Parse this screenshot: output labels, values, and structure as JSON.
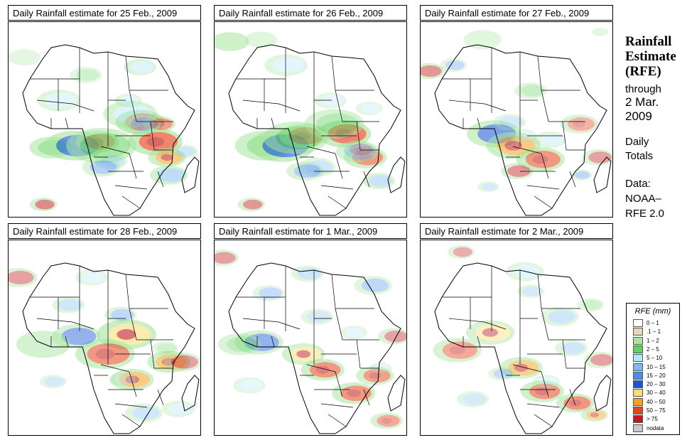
{
  "panels": [
    {
      "title": "Daily Rainfall estimate for  25 Feb., 2009",
      "rain": [
        [
          3,
          22,
          64,
          8,
          0.55
        ],
        [
          26,
          34,
          63,
          11,
          0.6
        ],
        [
          52,
          46,
          61,
          8,
          0.5
        ],
        [
          56,
          68,
          51,
          9,
          0.7
        ],
        [
          54,
          76,
          61,
          10,
          0.65
        ],
        [
          48,
          82,
          69,
          7,
          0.55
        ],
        [
          66,
          78,
          52,
          6,
          0.5
        ],
        [
          76,
          18,
          93,
          5,
          0.5
        ],
        [
          2,
          48,
          63,
          13,
          0.55
        ],
        [
          5,
          68,
          23,
          6,
          0.4
        ],
        [
          9,
          63,
          47,
          10,
          0.45
        ],
        [
          10,
          69,
          52,
          7,
          0.5
        ],
        [
          10,
          83,
          78,
          7,
          0.5
        ],
        [
          11,
          91,
          66,
          5,
          0.35
        ],
        [
          12,
          53,
          71,
          6,
          0.35
        ],
        [
          15,
          48,
          74,
          7,
          0.4
        ],
        [
          7,
          62,
          40,
          5,
          0.35
        ],
        [
          4,
          40,
          27,
          6,
          0.3
        ],
        [
          1,
          8,
          18,
          6,
          0.3
        ],
        [
          8,
          26,
          40,
          8,
          0.35
        ]
      ]
    },
    {
      "title": "Daily Rainfall estimate for  26 Feb., 2009",
      "rain": [
        [
          3,
          26,
          63,
          11,
          0.55
        ],
        [
          25,
          35,
          63,
          12,
          0.6
        ],
        [
          54,
          46,
          58,
          9,
          0.5
        ],
        [
          58,
          67,
          57,
          10,
          0.65
        ],
        [
          56,
          78,
          69,
          8,
          0.55
        ],
        [
          66,
          75,
          65,
          6,
          0.45
        ],
        [
          75,
          19,
          93,
          5,
          0.45
        ],
        [
          1,
          8,
          10,
          7,
          0.55
        ],
        [
          2,
          42,
          59,
          12,
          0.5
        ],
        [
          3,
          62,
          52,
          11,
          0.45
        ],
        [
          10,
          74,
          66,
          8,
          0.45
        ],
        [
          11,
          85,
          81,
          6,
          0.4
        ],
        [
          13,
          53,
          74,
          7,
          0.35
        ],
        [
          15,
          47,
          76,
          7,
          0.4
        ],
        [
          8,
          37,
          22,
          8,
          0.35
        ],
        [
          5,
          60,
          40,
          6,
          0.3
        ],
        [
          1,
          24,
          9,
          6,
          0.35
        ],
        [
          9,
          80,
          44,
          5,
          0.3
        ]
      ]
    },
    {
      "title": "Daily Rainfall estimate for  27 Feb., 2009",
      "rain": [
        [
          21,
          38,
          57,
          10,
          0.55
        ],
        [
          44,
          48,
          63,
          10,
          0.55
        ],
        [
          65,
          62,
          70,
          9,
          0.55
        ],
        [
          82,
          50,
          76,
          6,
          0.45
        ],
        [
          73,
          82,
          52,
          7,
          0.4
        ],
        [
          89,
          92,
          69,
          6,
          0.4
        ],
        [
          92,
          4,
          25,
          6,
          0.45
        ],
        [
          1,
          32,
          9,
          7,
          0.35
        ],
        [
          1,
          93,
          5,
          3,
          0.3
        ],
        [
          16,
          83,
          78,
          4,
          0.35
        ],
        [
          13,
          35,
          84,
          4,
          0.3
        ],
        [
          7,
          67,
          60,
          6,
          0.35
        ],
        [
          3,
          57,
          35,
          6,
          0.35
        ],
        [
          14,
          46,
          51,
          6,
          0.3
        ],
        [
          9,
          53,
          58,
          5,
          0.3
        ],
        [
          18,
          17,
          22,
          5,
          0.3
        ]
      ]
    },
    {
      "title": "Daily Rainfall estimate for  28 Feb., 2009",
      "rain": [
        [
          32,
          61,
          48,
          11,
          0.6
        ],
        [
          55,
          50,
          58,
          11,
          0.55
        ],
        [
          49,
          64,
          71,
          8,
          0.55
        ],
        [
          40,
          83,
          62,
          8,
          0.55
        ],
        [
          21,
          35,
          49,
          9,
          0.45
        ],
        [
          1,
          18,
          53,
          10,
          0.5
        ],
        [
          77,
          90,
          62,
          7,
          0.4
        ],
        [
          90,
          5,
          19,
          7,
          0.4
        ],
        [
          5,
          43,
          19,
          6,
          0.3
        ],
        [
          11,
          31,
          33,
          6,
          0.35
        ],
        [
          15,
          58,
          38,
          6,
          0.35
        ],
        [
          9,
          88,
          86,
          6,
          0.35
        ],
        [
          11,
          70,
          88,
          7,
          0.35
        ],
        [
          6,
          59,
          71,
          5,
          0.3
        ],
        [
          3,
          81,
          55,
          5,
          0.3
        ],
        [
          13,
          23,
          72,
          5,
          0.3
        ]
      ]
    },
    {
      "title": "Daily Rainfall estimate for  1 Mar., 2009",
      "rain": [
        [
          38,
          46,
          58,
          8,
          0.5
        ],
        [
          58,
          56,
          66,
          8,
          0.55
        ],
        [
          63,
          72,
          78,
          8,
          0.55
        ],
        [
          61,
          83,
          69,
          7,
          0.5
        ],
        [
          50,
          89,
          92,
          6,
          0.45
        ],
        [
          75,
          93,
          49,
          6,
          0.4
        ],
        [
          85,
          4,
          9,
          6,
          0.4
        ],
        [
          22,
          23,
          52,
          9,
          0.45
        ],
        [
          3,
          13,
          53,
          8,
          0.4
        ],
        [
          14,
          53,
          39,
          6,
          0.3
        ],
        [
          16,
          28,
          27,
          6,
          0.3
        ],
        [
          10,
          48,
          17,
          6,
          0.35
        ],
        [
          16,
          82,
          23,
          7,
          0.35
        ],
        [
          9,
          72,
          47,
          5,
          0.3
        ],
        [
          5,
          86,
          65,
          4,
          0.3
        ],
        [
          6,
          18,
          74,
          6,
          0.3
        ]
      ]
    },
    {
      "title": "Daily Rainfall estimate for  2 Mar., 2009",
      "rain": [
        [
          42,
          52,
          65,
          8,
          0.5
        ],
        [
          64,
          63,
          77,
          8,
          0.55
        ],
        [
          74,
          80,
          83,
          7,
          0.55
        ],
        [
          46,
          90,
          89,
          5,
          0.45
        ],
        [
          84,
          93,
          61,
          6,
          0.4
        ],
        [
          80,
          21,
          6,
          5,
          0.35
        ],
        [
          30,
          36,
          47,
          9,
          0.45
        ],
        [
          51,
          19,
          56,
          9,
          0.45
        ],
        [
          12,
          27,
          81,
          6,
          0.3
        ],
        [
          8,
          54,
          16,
          7,
          0.35
        ],
        [
          13,
          72,
          39,
          7,
          0.35
        ],
        [
          2,
          88,
          33,
          5,
          0.3
        ],
        [
          13,
          78,
          55,
          6,
          0.35
        ],
        [
          17,
          42,
          68,
          5,
          0.3
        ],
        [
          5,
          65,
          72,
          5,
          0.3
        ],
        [
          10,
          57,
          26,
          5,
          0.3
        ]
      ]
    }
  ],
  "sidebar": {
    "title": [
      "Rainfall",
      "Estimate",
      "(RFE)"
    ],
    "through_label": "through",
    "date_line1": "2 Mar.",
    "date_line2": "2009",
    "totals_line1": "Daily",
    "totals_line2": "Totals",
    "data_line1": "Data:",
    "data_line2": "NOAA–",
    "data_line3": "RFE 2.0"
  },
  "legend": {
    "title": "RFE (mm)",
    "items": [
      {
        "label": "0 – 1",
        "color": "#ffffff"
      },
      {
        "label": ".1 – 1",
        "color": "#e8d6b8"
      },
      {
        "label": "1 – 2",
        "color": "#a8e6a0"
      },
      {
        "label": "2 – 5",
        "color": "#5fd25f"
      },
      {
        "label": "5 – 10",
        "color": "#b4e8f6"
      },
      {
        "label": "10 – 15",
        "color": "#7bbcf0"
      },
      {
        "label": "15 – 20",
        "color": "#4a8ef0"
      },
      {
        "label": "20 – 30",
        "color": "#1456d8"
      },
      {
        "label": "30 – 40",
        "color": "#f7de7a"
      },
      {
        "label": "40 – 50",
        "color": "#f7a21e"
      },
      {
        "label": "50 – 75",
        "color": "#e7441c"
      },
      {
        "label": "> 75",
        "color": "#c21a1a"
      },
      {
        "label": "nodata",
        "color": "#c8c8c8"
      }
    ]
  }
}
